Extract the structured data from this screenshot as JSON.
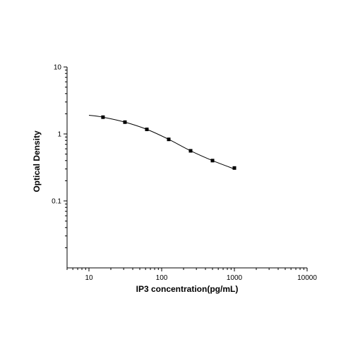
{
  "chart_data": {
    "type": "scatter",
    "title": "",
    "xlabel": "IP3 concentration(pg/mL)",
    "ylabel": "Optical Density",
    "xscale": "log",
    "yscale": "log",
    "xlim": [
      5,
      10000
    ],
    "ylim": [
      0.01,
      10
    ],
    "x_ticks": [
      10,
      100,
      1000,
      10000
    ],
    "x_tick_labels": [
      "10",
      "100",
      "1000",
      "10000"
    ],
    "y_ticks": [
      0.1,
      1,
      10
    ],
    "y_tick_labels": [
      "0.1",
      "1",
      "10"
    ],
    "grid": false,
    "legend": "none",
    "series": [
      {
        "x": [
          15.6,
          31.25,
          62.5,
          125,
          250,
          500,
          1000
        ],
        "y": [
          1.78,
          1.5,
          1.17,
          0.83,
          0.56,
          0.4,
          0.31
        ]
      }
    ],
    "fit_curve": {
      "x": [
        10,
        15.6,
        31.25,
        62.5,
        125,
        250,
        500,
        1000
      ],
      "y": [
        1.9,
        1.78,
        1.5,
        1.17,
        0.83,
        0.56,
        0.4,
        0.3
      ]
    },
    "colors": {
      "axis": "#000000",
      "marker": "#000000",
      "curve": "#000000"
    }
  }
}
